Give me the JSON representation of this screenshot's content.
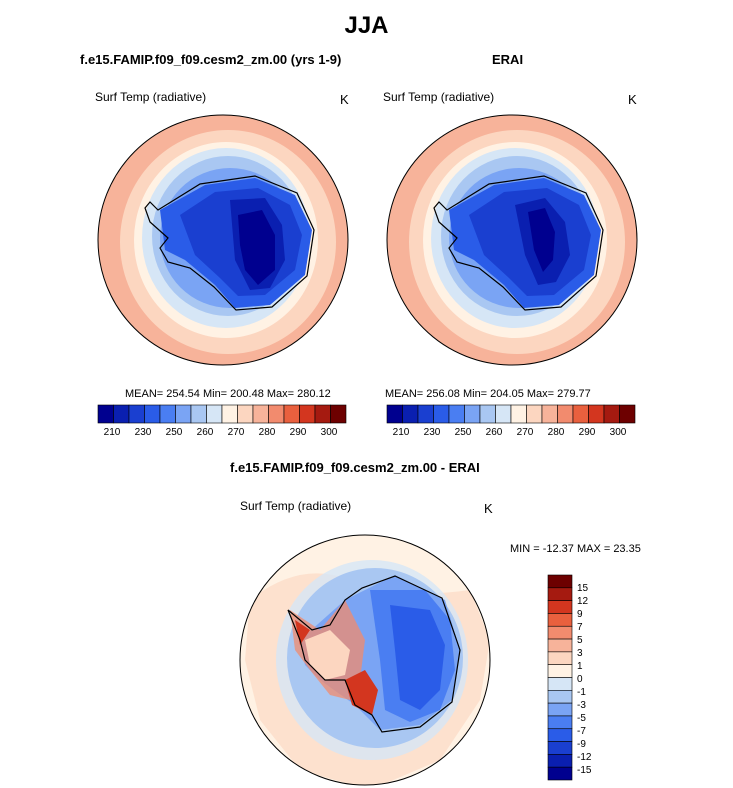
{
  "title": "JJA",
  "panels": [
    {
      "title": "f.e15.FAMIP.f09_f09.cesm2_zm.00 (yrs 1-9)",
      "variable": "Surf Temp (radiative)",
      "units": "K",
      "stats": "MEAN= 254.54  Min= 200.48  Max= 280.12"
    },
    {
      "title": "ERAI",
      "variable": "Surf Temp (radiative)",
      "units": "K",
      "stats": "MEAN= 256.08  Min= 204.05  Max= 279.77"
    },
    {
      "title": "f.e15.FAMIP.f09_f09.cesm2_zm.00 - ERAI",
      "variable": "Surf Temp (radiative)",
      "units": "K",
      "stats": "MIN = -12.37 MAX =  23.35"
    }
  ],
  "colorbar_abs": {
    "tick_labels": [
      "210",
      "230",
      "250",
      "260",
      "270",
      "280",
      "290",
      "300"
    ],
    "colors": [
      "#00008f",
      "#0a1fb0",
      "#1a3fd0",
      "#2a5ce8",
      "#4a7ef2",
      "#7aa4f4",
      "#a9c7f2",
      "#d6e6f6",
      "#fff2e4",
      "#fcd6c0",
      "#f7b39a",
      "#f28b6e",
      "#e9603e",
      "#d3361f",
      "#a51a10",
      "#6d0000"
    ]
  },
  "colorbar_diff": {
    "tick_labels": [
      "15",
      "12",
      "9",
      "7",
      "5",
      "3",
      "1",
      "0",
      "-1",
      "-3",
      "-5",
      "-7",
      "-9",
      "-12",
      "-15"
    ],
    "colors": [
      "#6d0000",
      "#a51a10",
      "#d3361f",
      "#e9603e",
      "#f28b6e",
      "#f7b39a",
      "#fcd6c0",
      "#fff2e4",
      "#d6e6f6",
      "#a9c7f2",
      "#7aa4f4",
      "#4a7ef2",
      "#2a5ce8",
      "#1a3fd0",
      "#0a1fb0",
      "#00008f"
    ]
  }
}
